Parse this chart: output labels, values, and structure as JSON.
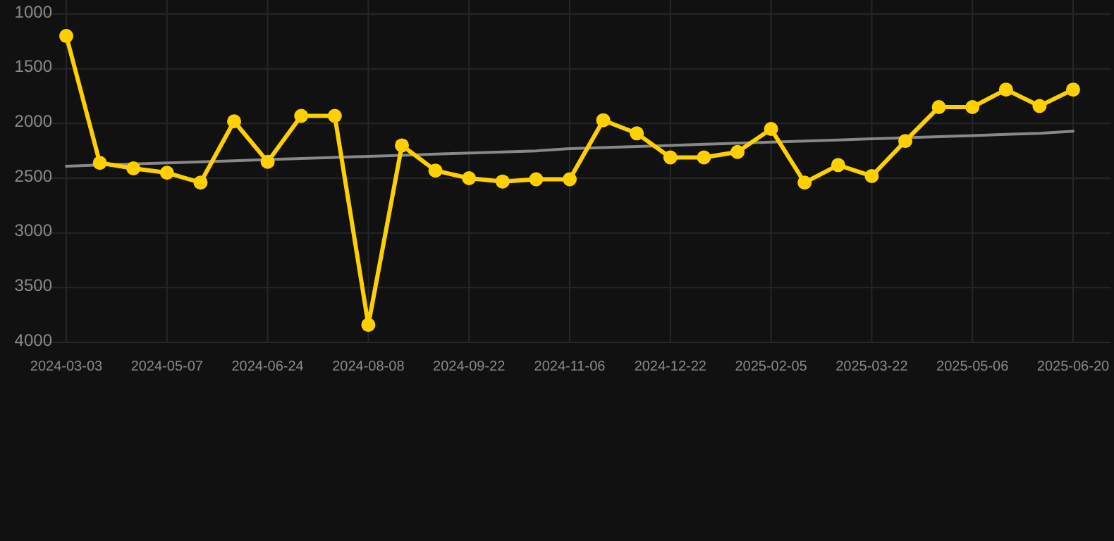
{
  "chart_data": {
    "type": "line",
    "categories": [
      "2024-03-03",
      null,
      null,
      "2024-05-07",
      null,
      null,
      "2024-06-24",
      null,
      null,
      "2024-08-08",
      null,
      null,
      "2024-09-22",
      null,
      null,
      "2024-11-06",
      null,
      null,
      "2024-12-22",
      null,
      null,
      "2025-02-05",
      null,
      null,
      "2025-03-22",
      null,
      null,
      "2025-05-06",
      null,
      null,
      "2025-06-20"
    ],
    "series": [
      {
        "color": "#888888",
        "marker": "none",
        "values": [
          2390,
          2380,
          2370,
          2360,
          2350,
          2340,
          2330,
          2320,
          2310,
          2300,
          2290,
          2280,
          2270,
          2260,
          2250,
          2230,
          2220,
          2210,
          2200,
          2190,
          2180,
          2170,
          2160,
          2150,
          2140,
          2130,
          2120,
          2110,
          2100,
          2090,
          2070
        ]
      },
      {
        "color": "#ffd000",
        "marker": "circle",
        "values": [
          1200,
          2360,
          2410,
          2450,
          2540,
          1980,
          2350,
          1930,
          1930,
          3840,
          2200,
          2430,
          2500,
          2530,
          2510,
          2510,
          1970,
          2090,
          2310,
          2310,
          2260,
          2050,
          2540,
          2380,
          2480,
          2160,
          1850,
          1850,
          1690,
          1840,
          1690
        ]
      }
    ],
    "ylim": [
      4000,
      1000
    ],
    "yticks": [
      1000,
      1500,
      2000,
      2500,
      3000,
      3500,
      4000
    ],
    "grid": true
  }
}
